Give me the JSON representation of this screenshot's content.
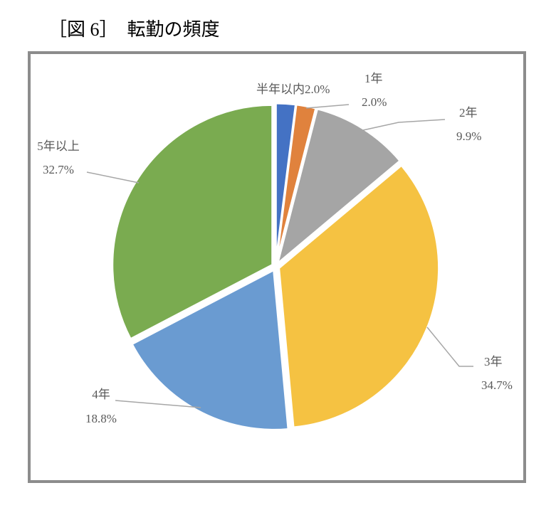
{
  "chart_data": {
    "type": "pie",
    "title": "［図 6］　転勤の頻度",
    "categories": [
      "半年以内",
      "1年",
      "2年",
      "3年",
      "4年",
      "5年以上"
    ],
    "values": [
      2.0,
      2.0,
      9.9,
      34.7,
      18.8,
      32.7
    ],
    "value_labels": [
      "2.0%",
      "2.0%",
      "9.9%",
      "34.7%",
      "18.8%",
      "32.7%"
    ],
    "colors": [
      "#4472c4",
      "#e0823d",
      "#a5a5a5",
      "#f5c242",
      "#6a9bd1",
      "#7aab50"
    ]
  }
}
